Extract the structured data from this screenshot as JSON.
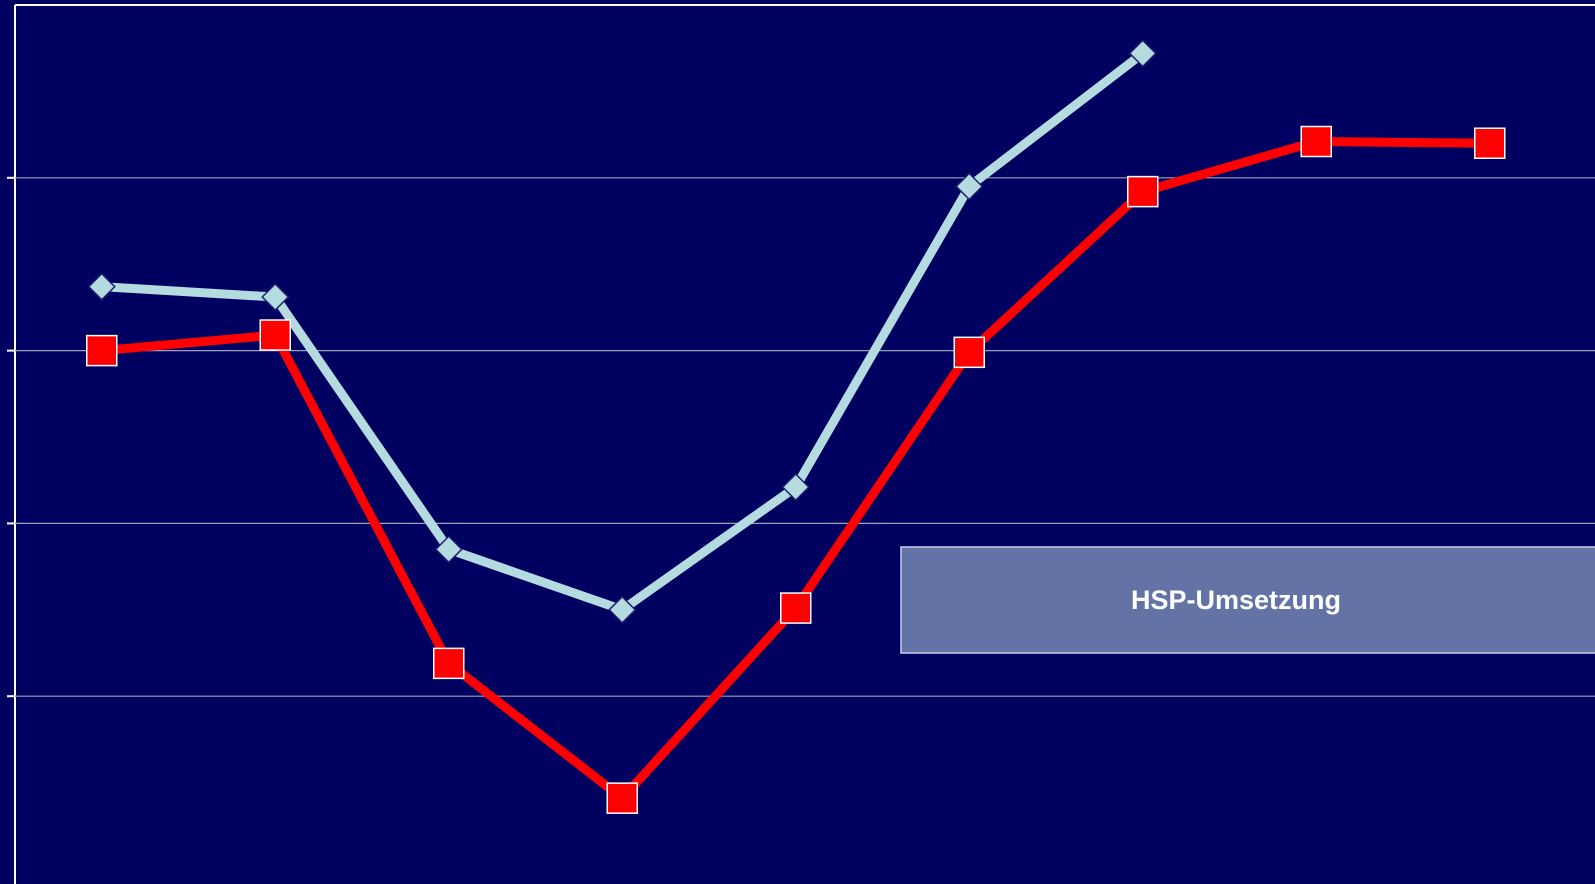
{
  "chart_data": {
    "type": "line",
    "categories": [
      null,
      null,
      null,
      null,
      null,
      null,
      null,
      null,
      null
    ],
    "series": [
      {
        "color": "#b4dce0",
        "marker": "diamond",
        "values": [
          3.37,
          3.31,
          1.85,
          1.5,
          2.21,
          3.95,
          4.72,
          null,
          null
        ]
      },
      {
        "color": "#ff0000",
        "marker": "square",
        "values": [
          3.0,
          3.09,
          1.19,
          0.41,
          1.51,
          2.99,
          3.92,
          4.21,
          4.2
        ]
      }
    ],
    "ylim": [
      0,
      5
    ],
    "yticks": [
      1,
      2,
      3,
      4
    ],
    "grid": true,
    "annotation": "HSP-Umsetzung"
  }
}
